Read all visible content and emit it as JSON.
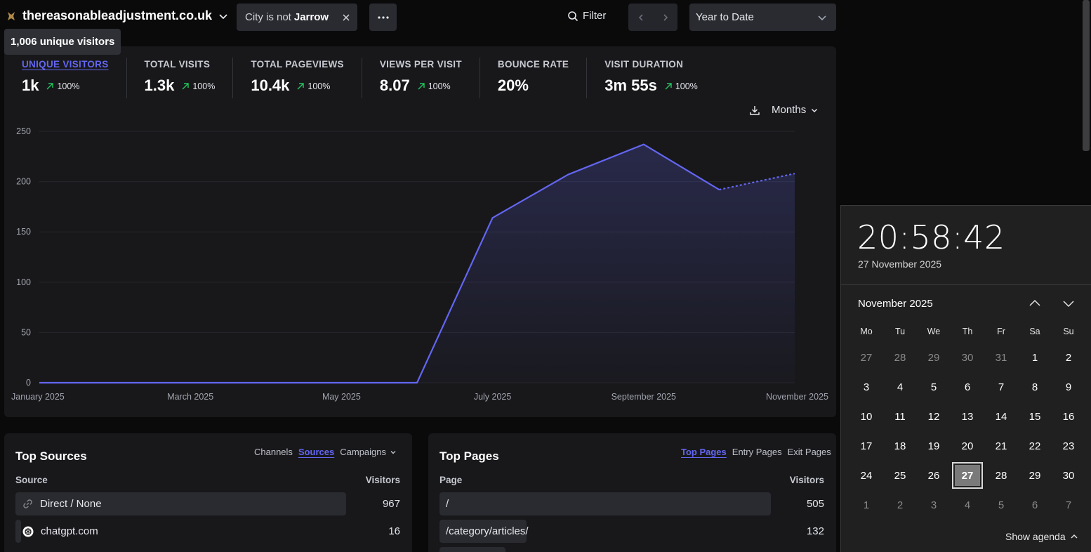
{
  "header": {
    "site_name": "thereasonableadjustment.co.uk",
    "filter_chip_prefix": "City is not",
    "filter_chip_value": "Jarrow",
    "filter_label": "Filter",
    "period_label": "Year to Date"
  },
  "tooltip": {
    "text": "1,006 unique visitors"
  },
  "metrics": [
    {
      "label": "Unique visitors",
      "value": "1k",
      "change": "100%"
    },
    {
      "label": "Total visits",
      "value": "1.3k",
      "change": "100%"
    },
    {
      "label": "Total pageviews",
      "value": "10.4k",
      "change": "100%"
    },
    {
      "label": "Views per visit",
      "value": "8.07",
      "change": "100%"
    },
    {
      "label": "Bounce rate",
      "value": "20%",
      "change": ""
    },
    {
      "label": "Visit duration",
      "value": "3m 55s",
      "change": "100%"
    }
  ],
  "interval": {
    "label": "Months"
  },
  "chart_data": {
    "type": "area",
    "x": [
      "January 2025",
      "February 2025",
      "March 2025",
      "April 2025",
      "May 2025",
      "June 2025",
      "July 2025",
      "August 2025",
      "September 2025",
      "October 2025",
      "November 2025"
    ],
    "x_tick_labels": [
      "January 2025",
      "March 2025",
      "May 2025",
      "July 2025",
      "September 2025",
      "November 2025"
    ],
    "series": [
      {
        "values": [
          0,
          0,
          0,
          0,
          0,
          0,
          164,
          207,
          237,
          192,
          208
        ]
      }
    ],
    "partial_last_point": true,
    "yticks": [
      0,
      50,
      100,
      150,
      200,
      250
    ],
    "ylim": [
      0,
      250
    ],
    "grid": true,
    "color": "#6366f1"
  },
  "top_sources": {
    "title": "Top Sources",
    "tabs": [
      "Channels",
      "Sources",
      "Campaigns"
    ],
    "active_tab": "Sources",
    "col_source": "Source",
    "col_visitors": "Visitors",
    "rows": [
      {
        "label": "Direct / None",
        "value": "967",
        "fraction": 1.0,
        "icon": "link-icon"
      },
      {
        "label": "chatgpt.com",
        "value": "16",
        "fraction": 0.017,
        "icon": "chatgpt-icon"
      }
    ]
  },
  "top_pages": {
    "title": "Top Pages",
    "tabs": [
      "Top Pages",
      "Entry Pages",
      "Exit Pages"
    ],
    "active_tab": "Top Pages",
    "col_page": "Page",
    "col_visitors": "Visitors",
    "rows": [
      {
        "label": "/",
        "value": "505",
        "fraction": 1.0
      },
      {
        "label": "/category/articles/",
        "value": "132",
        "fraction": 0.261
      }
    ]
  },
  "calendar": {
    "time": "20:58:42",
    "date": "27 November 2025",
    "month": "November 2025",
    "weekdays": [
      "Mo",
      "Tu",
      "We",
      "Th",
      "Fr",
      "Sa",
      "Su"
    ],
    "weeks": [
      [
        "27",
        "28",
        "29",
        "30",
        "31",
        "1",
        "2"
      ],
      [
        "3",
        "4",
        "5",
        "6",
        "7",
        "8",
        "9"
      ],
      [
        "10",
        "11",
        "12",
        "13",
        "14",
        "15",
        "16"
      ],
      [
        "17",
        "18",
        "19",
        "20",
        "21",
        "22",
        "23"
      ],
      [
        "24",
        "25",
        "26",
        "27",
        "28",
        "29",
        "30"
      ],
      [
        "1",
        "2",
        "3",
        "4",
        "5",
        "6",
        "7"
      ]
    ],
    "show_agenda": "Show agenda"
  }
}
